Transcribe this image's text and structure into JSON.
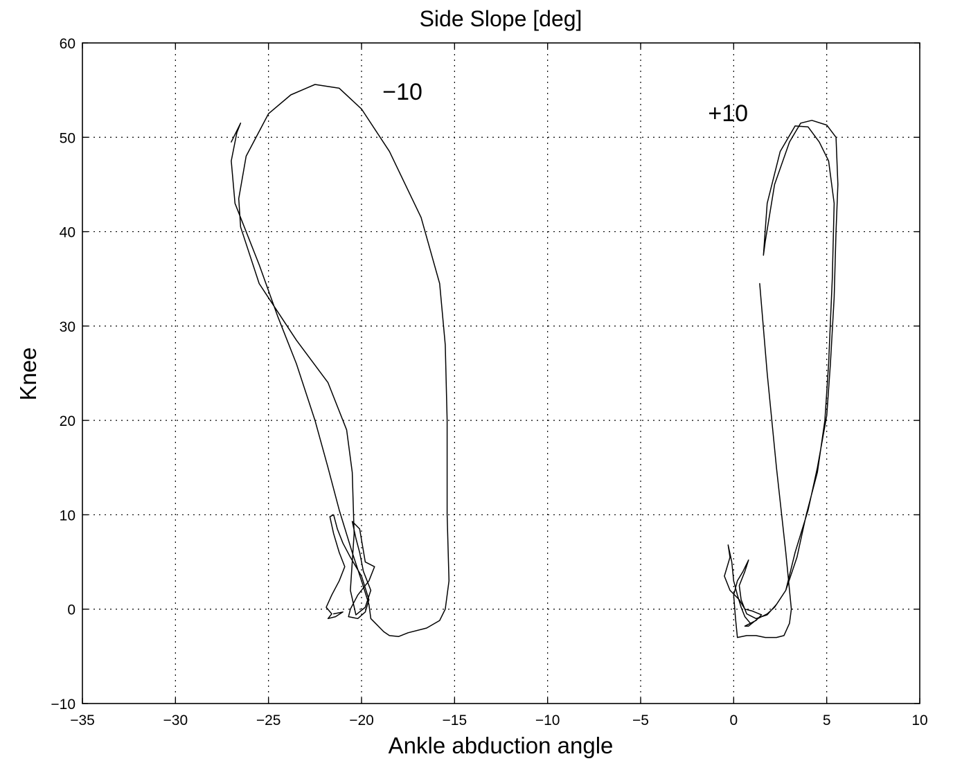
{
  "chart_data": {
    "type": "line",
    "title": "Side Slope [deg]",
    "xlabel": "Ankle abduction angle",
    "ylabel": "Knee",
    "xlim": [
      -35,
      10
    ],
    "ylim": [
      -10,
      60
    ],
    "xticks": [
      "−35",
      "−30",
      "−25",
      "−20",
      "−15",
      "−10",
      "−5",
      "0",
      "5",
      "10"
    ],
    "yticks": [
      "−10",
      "0",
      "10",
      "20",
      "30",
      "40",
      "50",
      "60"
    ],
    "grid": true,
    "annotations": [
      {
        "text": "−10",
        "x": -17.8,
        "y": 54.0
      },
      {
        "text": "+10",
        "x": -0.3,
        "y": 51.7
      }
    ],
    "series": [
      {
        "points": [
          [
            -27.0,
            49.5
          ],
          [
            -26.5,
            51.5
          ],
          [
            -26.7,
            50.5
          ],
          [
            -27.0,
            47.5
          ],
          [
            -26.8,
            43.0
          ],
          [
            -25.5,
            36.5
          ],
          [
            -24.5,
            31.0
          ],
          [
            -23.5,
            26.0
          ],
          [
            -22.5,
            20.0
          ],
          [
            -21.8,
            15.0
          ],
          [
            -21.2,
            10.5
          ],
          [
            -20.5,
            6.0
          ],
          [
            -20.0,
            3.0
          ],
          [
            -19.6,
            0.5
          ],
          [
            -19.5,
            -1.0
          ],
          [
            -18.8,
            -2.4
          ],
          [
            -18.5,
            -2.8
          ],
          [
            -18.0,
            -2.9
          ],
          [
            -17.5,
            -2.5
          ],
          [
            -16.5,
            -2.0
          ],
          [
            -15.8,
            -1.2
          ],
          [
            -15.5,
            0.0
          ],
          [
            -15.3,
            3.0
          ],
          [
            -15.4,
            10.0
          ],
          [
            -15.4,
            20.0
          ],
          [
            -15.5,
            28.0
          ],
          [
            -15.8,
            34.5
          ],
          [
            -16.8,
            41.5
          ],
          [
            -18.5,
            48.5
          ],
          [
            -20.0,
            53.0
          ],
          [
            -21.2,
            55.2
          ],
          [
            -22.5,
            55.6
          ],
          [
            -23.8,
            54.5
          ],
          [
            -25.0,
            52.5
          ],
          [
            -26.2,
            48.0
          ],
          [
            -26.6,
            43.5
          ],
          [
            -26.5,
            40.5
          ],
          [
            -25.5,
            34.5
          ],
          [
            -23.5,
            28.5
          ],
          [
            -21.8,
            24.0
          ],
          [
            -20.8,
            19.0
          ],
          [
            -20.5,
            14.5
          ],
          [
            -20.4,
            8.0
          ],
          [
            -20.6,
            2.0
          ],
          [
            -20.3,
            -0.6
          ],
          [
            -19.8,
            0.2
          ],
          [
            -19.5,
            2.0
          ],
          [
            -19.9,
            4.0
          ],
          [
            -20.1,
            6.0
          ],
          [
            -20.3,
            7.5
          ],
          [
            -20.5,
            9.3
          ],
          [
            -20.1,
            8.5
          ],
          [
            -19.8,
            5.0
          ],
          [
            -19.3,
            4.5
          ],
          [
            -19.6,
            3.0
          ],
          [
            -20.2,
            1.5
          ],
          [
            -20.6,
            0.0
          ],
          [
            -20.7,
            -0.8
          ],
          [
            -20.2,
            -1.0
          ],
          [
            -19.8,
            -0.3
          ],
          [
            -19.6,
            1.0
          ],
          [
            -20.0,
            3.5
          ],
          [
            -20.6,
            5.5
          ],
          [
            -21.0,
            7.0
          ],
          [
            -21.3,
            8.5
          ],
          [
            -21.5,
            10.0
          ],
          [
            -21.7,
            9.8
          ],
          [
            -21.5,
            8.0
          ],
          [
            -21.2,
            6.0
          ],
          [
            -20.9,
            4.5
          ],
          [
            -21.2,
            3.0
          ],
          [
            -21.6,
            1.5
          ],
          [
            -21.9,
            0.2
          ],
          [
            -21.6,
            -0.5
          ],
          [
            -21.8,
            -1.0
          ],
          [
            -21.4,
            -0.8
          ],
          [
            -21.0,
            -0.3
          ],
          [
            -21.5,
            -0.5
          ]
        ]
      },
      {
        "points": [
          [
            1.4,
            34.5
          ],
          [
            1.8,
            25.0
          ],
          [
            2.3,
            15.0
          ],
          [
            2.8,
            6.0
          ],
          [
            3.1,
            0.0
          ],
          [
            3.0,
            -1.5
          ],
          [
            2.7,
            -2.8
          ],
          [
            2.3,
            -3.0
          ],
          [
            1.7,
            -3.0
          ],
          [
            1.2,
            -2.8
          ],
          [
            0.7,
            -2.8
          ],
          [
            0.2,
            -3.0
          ],
          [
            0.1,
            -1.0
          ],
          [
            0.0,
            1.5
          ],
          [
            0.2,
            3.0
          ],
          [
            0.5,
            4.0
          ],
          [
            0.8,
            5.2
          ],
          [
            0.6,
            4.0
          ],
          [
            0.3,
            2.5
          ],
          [
            0.4,
            1.0
          ],
          [
            0.7,
            -0.5
          ],
          [
            1.2,
            -1.0
          ],
          [
            1.8,
            -0.6
          ],
          [
            2.3,
            0.5
          ],
          [
            2.8,
            2.0
          ],
          [
            3.3,
            6.0
          ],
          [
            4.0,
            10.5
          ],
          [
            4.5,
            15.0
          ],
          [
            5.0,
            20.5
          ],
          [
            5.2,
            26.0
          ],
          [
            5.4,
            33.0
          ],
          [
            5.5,
            40.0
          ],
          [
            5.6,
            45.0
          ],
          [
            5.5,
            50.0
          ],
          [
            5.0,
            51.3
          ],
          [
            4.2,
            51.8
          ],
          [
            3.6,
            51.5
          ],
          [
            3.0,
            49.5
          ],
          [
            2.2,
            45.0
          ],
          [
            1.7,
            39.0
          ],
          [
            1.6,
            37.5
          ],
          [
            1.8,
            43.0
          ],
          [
            2.5,
            48.5
          ],
          [
            3.3,
            51.2
          ],
          [
            4.0,
            51.1
          ],
          [
            4.6,
            49.5
          ],
          [
            5.1,
            47.5
          ],
          [
            5.4,
            43.0
          ],
          [
            5.3,
            35.0
          ],
          [
            5.1,
            26.0
          ],
          [
            4.9,
            20.0
          ],
          [
            4.5,
            14.5
          ],
          [
            3.9,
            10.0
          ],
          [
            3.4,
            5.5
          ],
          [
            2.8,
            2.0
          ],
          [
            2.2,
            0.2
          ],
          [
            1.8,
            -0.5
          ],
          [
            1.3,
            -1.0
          ],
          [
            0.8,
            -1.8
          ],
          [
            0.6,
            -1.8
          ],
          [
            1.2,
            -1.2
          ],
          [
            1.5,
            -0.6
          ],
          [
            1.0,
            -0.2
          ],
          [
            0.6,
            0.0
          ],
          [
            0.3,
            1.0
          ],
          [
            -0.2,
            2.0
          ],
          [
            -0.5,
            3.5
          ],
          [
            -0.2,
            5.5
          ],
          [
            -0.3,
            6.8
          ],
          [
            -0.1,
            5.0
          ],
          [
            0.0,
            3.0
          ],
          [
            0.2,
            1.5
          ],
          [
            0.4,
            0.2
          ],
          [
            0.6,
            -0.8
          ],
          [
            0.9,
            -1.5
          ]
        ]
      }
    ]
  }
}
